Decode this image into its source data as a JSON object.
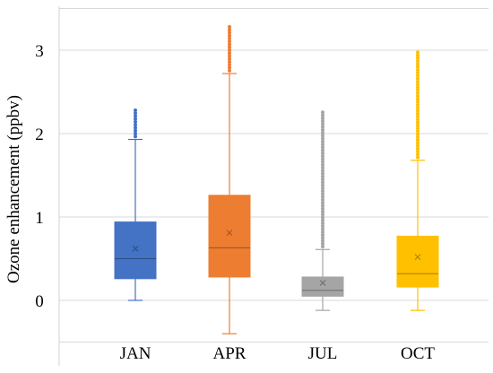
{
  "chart_data": {
    "type": "box",
    "ylabel": "Ozone enhancement (ppbv)",
    "xlabel": "",
    "title": "",
    "ylim": [
      -0.5,
      3.45
    ],
    "yticks": [
      0,
      1,
      2,
      3
    ],
    "grid": true,
    "categories": [
      "JAN",
      "APR",
      "JUL",
      "OCT"
    ],
    "boxes": [
      {
        "name": "JAN",
        "color": "#4472C4",
        "min": 0.0,
        "q1": 0.26,
        "median": 0.5,
        "q3": 0.94,
        "max": 1.93,
        "mean": 0.62,
        "outliers_to": 2.28
      },
      {
        "name": "APR",
        "color": "#ED7D31",
        "min": -0.4,
        "q1": 0.28,
        "median": 0.63,
        "q3": 1.26,
        "max": 2.72,
        "mean": 0.81,
        "outliers_to": 3.28
      },
      {
        "name": "JUL",
        "color": "#A5A5A5",
        "min": -0.12,
        "q1": 0.05,
        "median": 0.12,
        "q3": 0.28,
        "max": 0.61,
        "mean": 0.21,
        "outliers_to": 2.27
      },
      {
        "name": "OCT",
        "color": "#FFC000",
        "min": -0.12,
        "q1": 0.16,
        "median": 0.32,
        "q3": 0.77,
        "max": 1.68,
        "mean": 0.52,
        "outliers_to": 2.98
      }
    ]
  }
}
